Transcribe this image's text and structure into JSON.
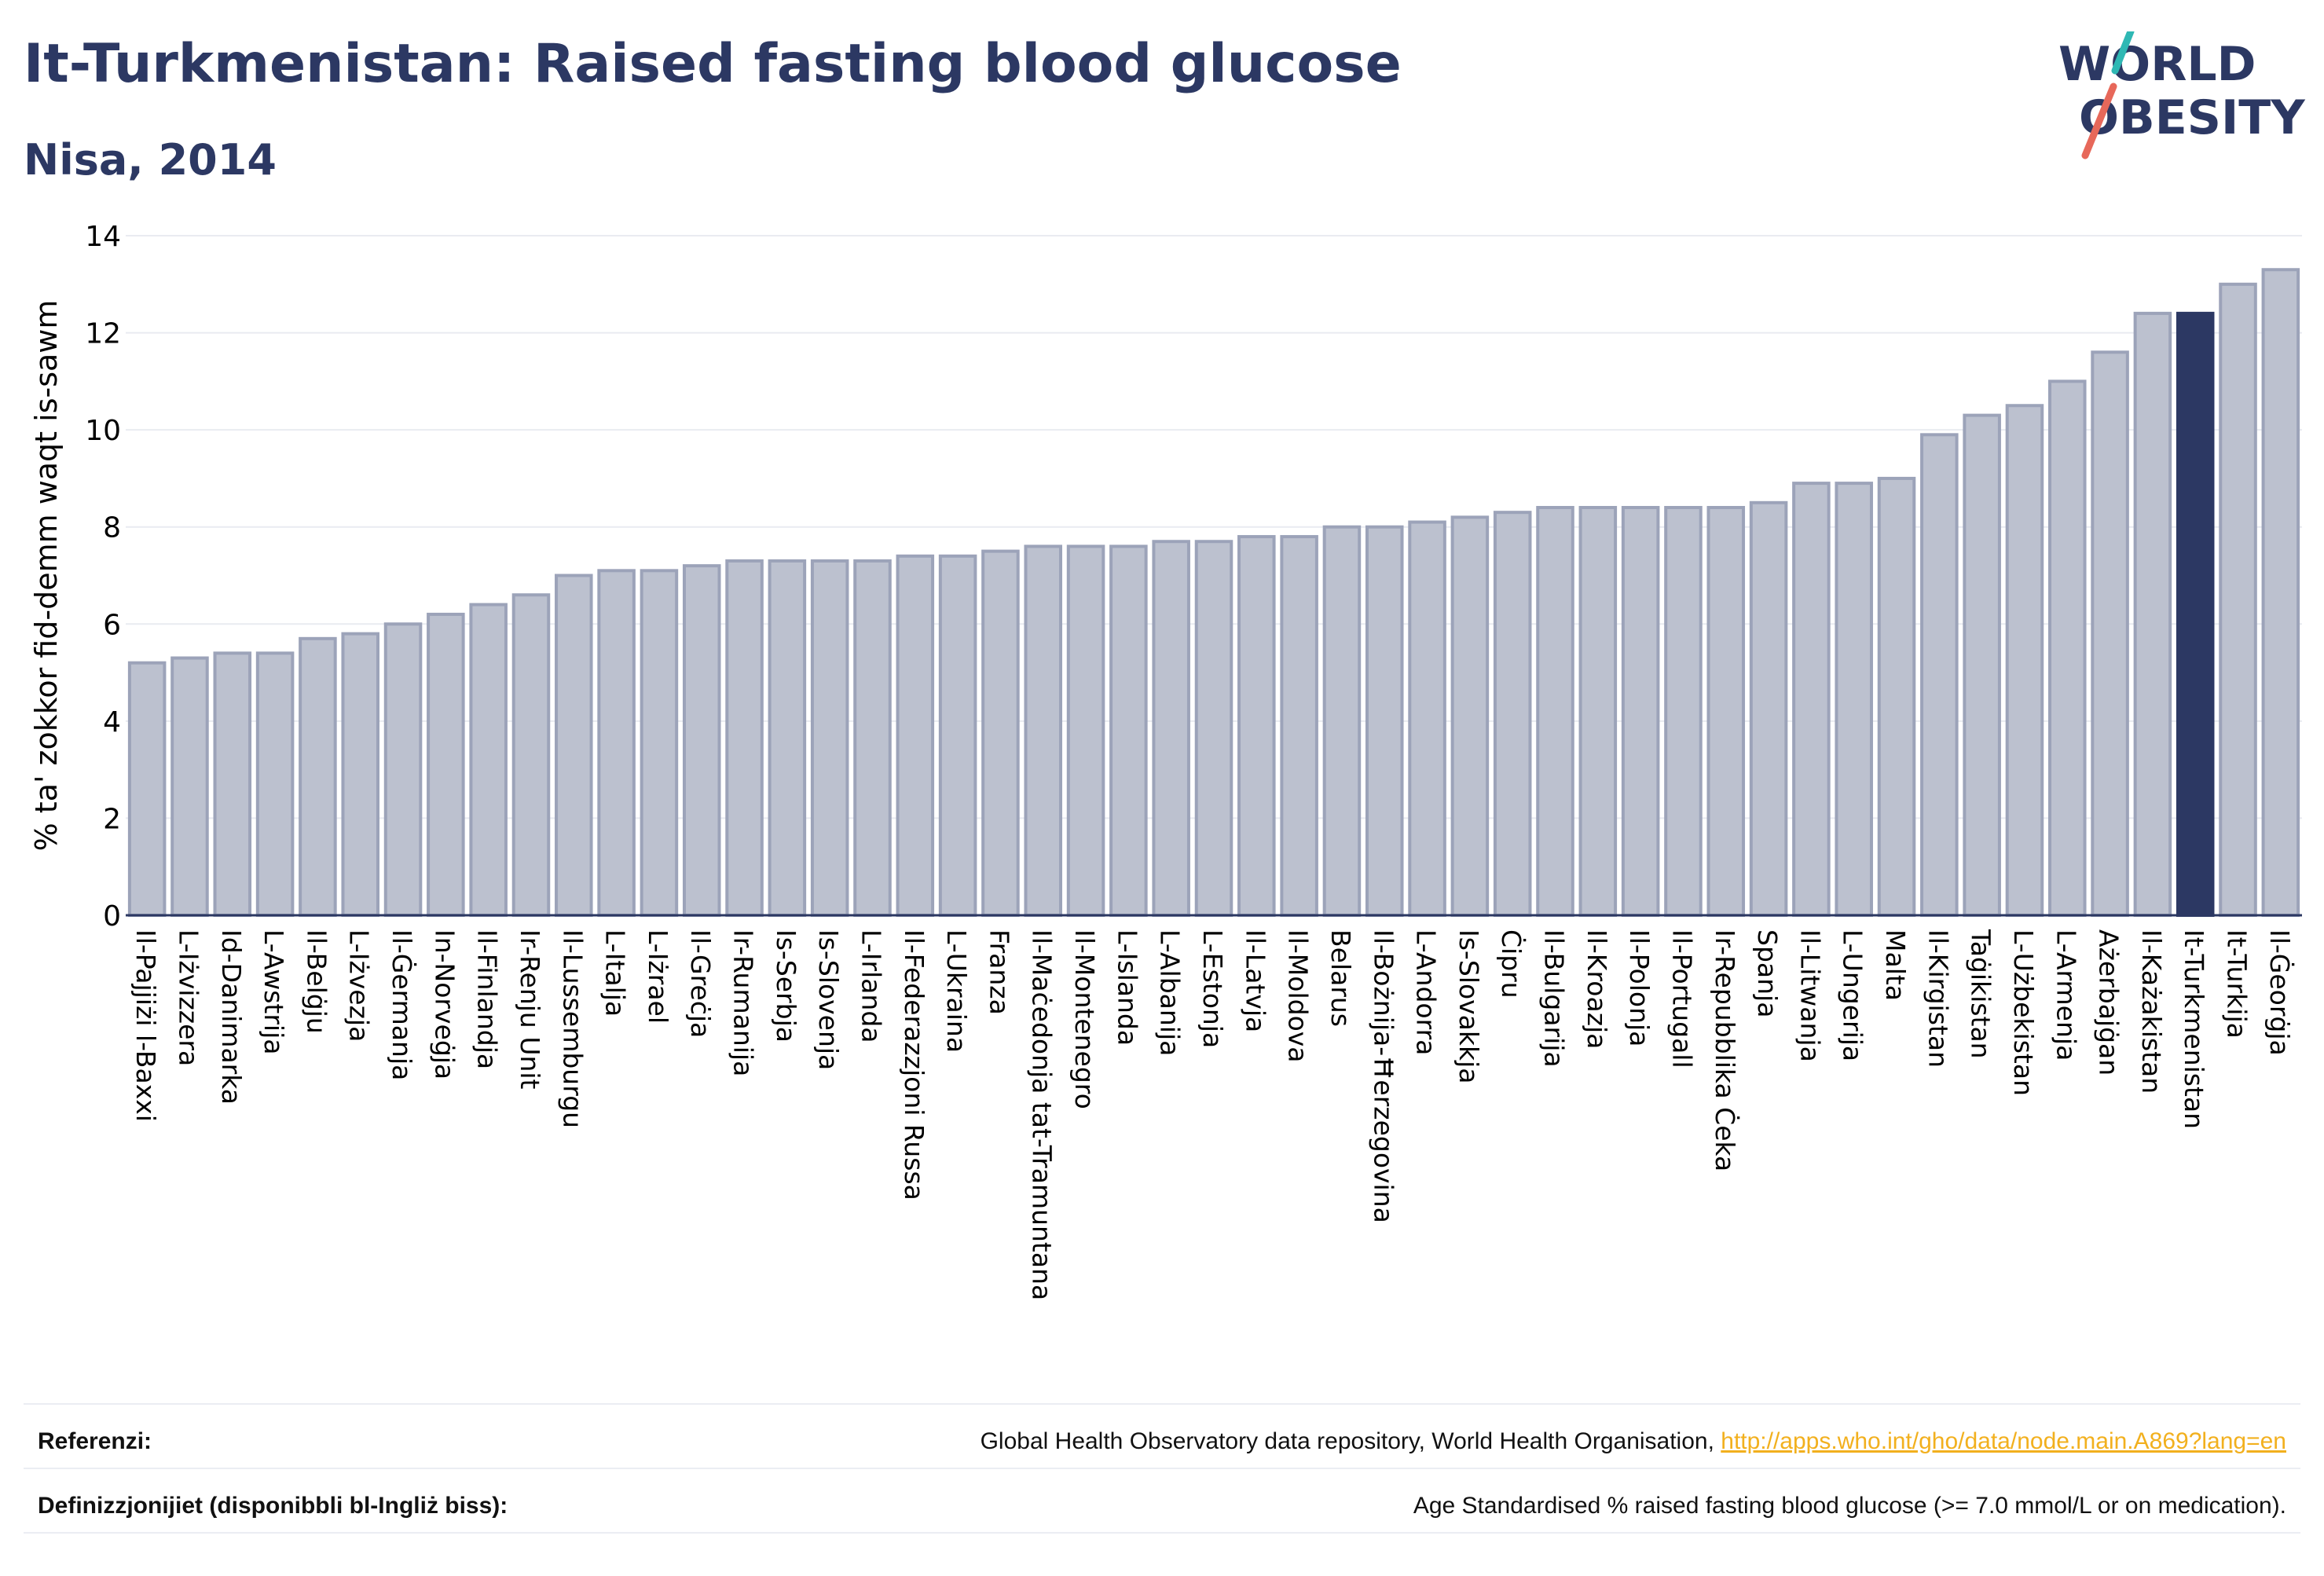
{
  "header": {
    "title": "It-Turkmenistan: Raised fasting blood glucose",
    "subtitle": "Nisa, 2014"
  },
  "logo": {
    "line1": "WORLD",
    "line2": "OBESITY"
  },
  "colors": {
    "bar": "#bcc1cf",
    "bar_border": "#9ca3b9",
    "highlight": "#2c3863",
    "title": "#2c3863",
    "link": "#f2b01e"
  },
  "chart_data": {
    "type": "bar",
    "ylabel": "% ta' zokkor fid-demm waqt is-sawm",
    "ylim": [
      0,
      14
    ],
    "yticks": [
      0,
      2,
      4,
      6,
      8,
      10,
      12,
      14
    ],
    "grid": true,
    "highlight": "It-Turkmenistan",
    "categories": [
      "Il-Pajjiżi l-Baxxi",
      "L-Iżvizzera",
      "Id-Danimarka",
      "L-Awstrija",
      "Il-Belġju",
      "L-Iżvezja",
      "Il-Ġermanja",
      "In-Norveġja",
      "Il-Finlandja",
      "Ir-Renju Unit",
      "Il-Lussemburgu",
      "L-Italja",
      "L-Iżrael",
      "Il-Greċja",
      "Ir-Rumanija",
      "Is-Serbja",
      "Is-Slovenja",
      "L-Irlanda",
      "Il-Federazzjoni Russa",
      "L-Ukraina",
      "Franza",
      "Il-Maċedonja tat-Tramuntana",
      "Il-Montenegro",
      "L-Islanda",
      "L-Albanija",
      "L-Estonja",
      "Il-Latvja",
      "Il-Moldova",
      "Belarus",
      "Il-Bożnija-Ħerzegovina",
      "L-Andorra",
      "Is-Slovakkja",
      "Ċipru",
      "Il-Bulgarija",
      "Il-Kroazja",
      "Il-Polonja",
      "Il-Portugall",
      "Ir-Repubblika Ċeka",
      "Spanja",
      "Il-Litwanja",
      "L-Ungerija",
      "Malta",
      "Il-Kirgistan",
      "Taġikistan",
      "L-Użbekistan",
      "L-Armenja",
      "Ażerbajġan",
      "Il-Każakistan",
      "It-Turkmenistan",
      "It-Turkija",
      "Il-Ġeorġja"
    ],
    "values": [
      5.2,
      5.3,
      5.4,
      5.4,
      5.7,
      5.8,
      6.0,
      6.2,
      6.4,
      6.6,
      7.0,
      7.1,
      7.1,
      7.2,
      7.3,
      7.3,
      7.3,
      7.3,
      7.4,
      7.4,
      7.5,
      7.6,
      7.6,
      7.6,
      7.7,
      7.7,
      7.8,
      7.8,
      8.0,
      8.0,
      8.1,
      8.2,
      8.3,
      8.4,
      8.4,
      8.4,
      8.4,
      8.4,
      8.5,
      8.9,
      8.9,
      9.0,
      9.9,
      10.3,
      10.5,
      11.0,
      11.6,
      12.4,
      12.4,
      13.0,
      13.3
    ]
  },
  "footer": {
    "references_label": "Referenzi:",
    "references_text": "Global Health Observatory data repository, World Health Organisation, ",
    "references_link": "http://apps.who.int/gho/data/node.main.A869?lang=en",
    "definitions_label": "Definizzjonijiet (disponibbli bl-Ingliż biss):",
    "definitions_text": "Age Standardised % raised fasting blood glucose (>= 7.0 mmol/L or on medication)."
  }
}
